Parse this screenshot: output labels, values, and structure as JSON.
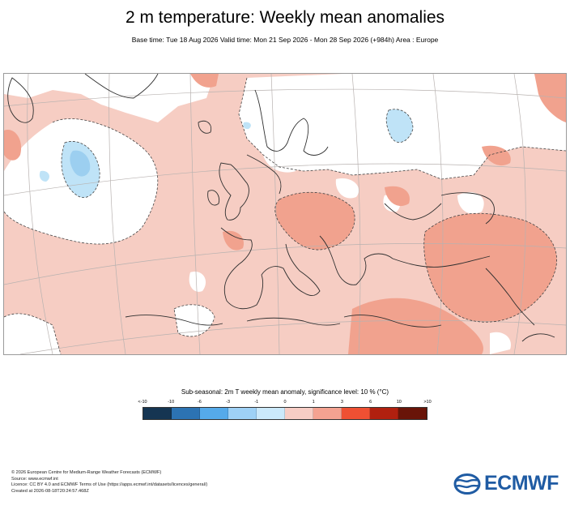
{
  "header": {
    "title": "2 m temperature: Weekly mean anomalies",
    "subtitle": "Base time: Tue 18 Aug 2026 Valid time: Mon 21 Sep 2026 - Mon 28 Sep 2026 (+984h) Area : Europe"
  },
  "map": {
    "area": "Europe",
    "colors": {
      "ocean_base": "#f6cdc3",
      "warm_strong": "#f1a28e",
      "cool_light": "#bfe3f7",
      "cool_mid": "#9ccff0",
      "neutral": "#ffffff",
      "coastline": "#2f2f2f",
      "grid": "#b8b2b0"
    }
  },
  "legend": {
    "title": "Sub-seasonal: 2m T weekly mean anomaly, significance level: 10 % (°C)",
    "ticks": [
      "<-10",
      "-10",
      "-6",
      "-3",
      "-1",
      "0",
      "1",
      "3",
      "6",
      "10",
      ">10"
    ],
    "colors": [
      "#153552",
      "#2c73b3",
      "#55aaea",
      "#9ed1f6",
      "#cbe9fb",
      "#f7cdc5",
      "#f4a291",
      "#ef5033",
      "#b1200f",
      "#691408"
    ]
  },
  "footer": {
    "line1": "© 2026 European Centre for Medium-Range Weather Forecasts (ECMWF)",
    "line2": "Source: www.ecmwf.int",
    "line3": "Licence: CC BY 4.0 and ECMWF Terms of Use (https://apps.ecmwf.int/datasets/licences/general/)",
    "line4": "Created at 2026-08-18T20:24:57.468Z"
  },
  "logo": {
    "text": "ECMWF",
    "color": "#1f5ba3"
  }
}
